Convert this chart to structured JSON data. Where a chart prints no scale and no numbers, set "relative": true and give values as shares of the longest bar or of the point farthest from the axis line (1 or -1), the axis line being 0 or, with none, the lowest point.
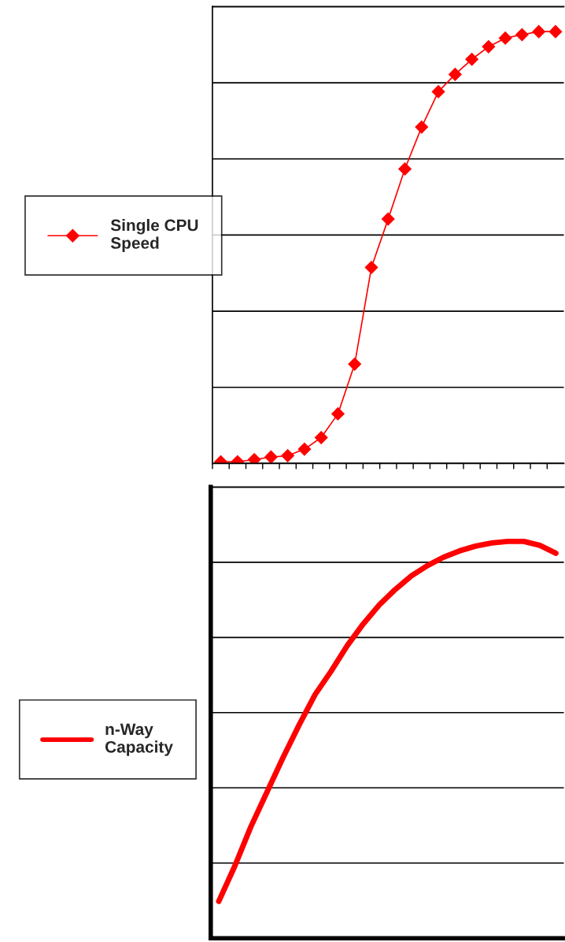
{
  "chart_data": [
    {
      "type": "line",
      "relative": true,
      "grid": "y",
      "legend": "left",
      "marker": "diamond",
      "line_style": "solid",
      "categories": [
        null,
        null,
        null,
        null,
        null,
        null,
        null,
        null,
        null,
        null,
        null,
        null,
        null,
        null,
        null,
        null,
        null,
        null,
        null,
        null,
        null
      ],
      "series": [
        {
          "name": "Single CPU Speed",
          "color": "#ff0000",
          "values": [
            0.004,
            0.004,
            0.009,
            0.015,
            0.018,
            0.033,
            0.06,
            0.115,
            0.23,
            0.454,
            0.566,
            0.682,
            0.779,
            0.861,
            0.901,
            0.936,
            0.965,
            0.985,
            0.993,
            1,
            1
          ]
        }
      ]
    },
    {
      "type": "line",
      "relative": true,
      "grid": "y",
      "legend": "left",
      "marker": "none",
      "line_style": "solid",
      "categories": [
        null,
        null,
        null,
        null,
        null,
        null,
        null,
        null,
        null,
        null,
        null,
        null,
        null,
        null,
        null,
        null,
        null,
        null,
        null,
        null,
        null,
        null
      ],
      "series": [
        {
          "name": "n-Way Capacity",
          "color": "#ff0000",
          "values": [
            0.093,
            0.182,
            0.281,
            0.368,
            0.455,
            0.537,
            0.614,
            0.673,
            0.737,
            0.792,
            0.84,
            0.879,
            0.913,
            0.939,
            0.96,
            0.976,
            0.988,
            0.996,
            1,
            1,
            0.99,
            0.97
          ]
        }
      ]
    }
  ]
}
